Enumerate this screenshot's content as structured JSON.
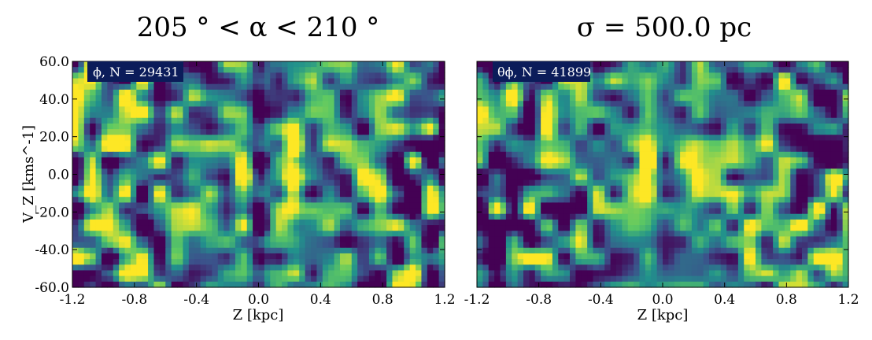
{
  "figure": {
    "title_left": "205 ° < α < 210 °",
    "title_right": "σ = 500.0 pc"
  },
  "chart_data": [
    {
      "type": "heatmap",
      "panel": "left",
      "annotation": "ϕ, N = 29431",
      "xlabel": "Z [kpc]",
      "ylabel": "V_Z [kms^-1]",
      "xlim": [
        -1.2,
        1.2
      ],
      "ylim": [
        -60.0,
        60.0
      ],
      "xticks": [
        "-1.2",
        "-0.8",
        "-0.4",
        "0.0",
        "0.4",
        "0.8",
        "1.2"
      ],
      "yticks": [
        "60.0",
        "40.0",
        "20.0",
        "0.0",
        "-20.0",
        "-40.0",
        "-60.0"
      ],
      "colormap": "viridis",
      "features": [
        {
          "kind": "bright ridge",
          "z": -0.1,
          "vz_range": [
            -22,
            22
          ]
        },
        {
          "kind": "dark gap",
          "z": 0.0,
          "vz_range": [
            -60,
            60
          ]
        },
        {
          "kind": "bright ridge",
          "z": 0.22,
          "vz_range": [
            -25,
            25
          ]
        }
      ]
    },
    {
      "type": "heatmap",
      "panel": "right",
      "annotation": "θϕ, N = 41899",
      "xlabel": "Z [kpc]",
      "xlim": [
        -1.2,
        1.2
      ],
      "ylim": [
        -60.0,
        60.0
      ],
      "xticks": [
        "-1.2",
        "-0.8",
        "-0.4",
        "0.0",
        "0.4",
        "0.8",
        "1.2"
      ],
      "colormap": "viridis",
      "features": [
        {
          "kind": "bright ridge",
          "z": -0.1,
          "vz_range": [
            -22,
            22
          ]
        },
        {
          "kind": "faint ridge",
          "z": 0.18,
          "vz_range": [
            -20,
            20
          ]
        }
      ]
    }
  ],
  "colors": {
    "badge_bg": "#0b1c5a",
    "badge_text": "#ffffff",
    "viridis_low": "#440154",
    "viridis_mid": "#21918c",
    "viridis_high": "#fde725"
  }
}
